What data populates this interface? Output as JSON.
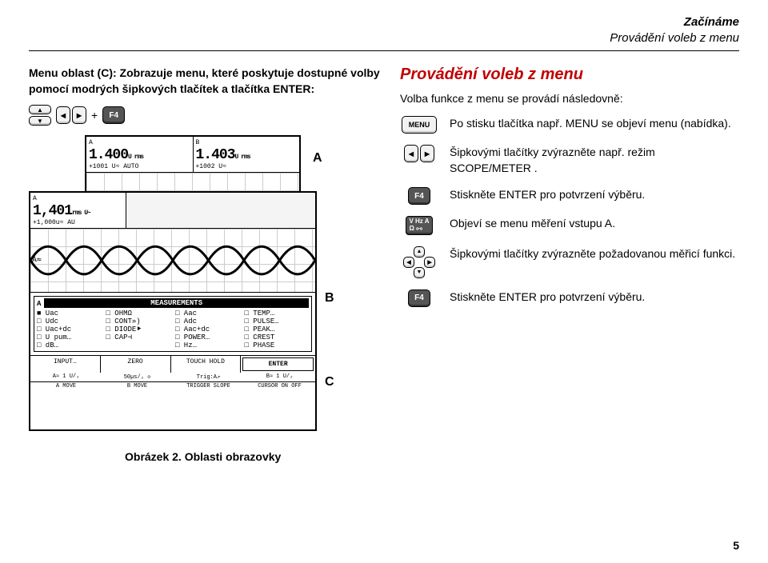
{
  "header": {
    "line1": "Začínáme",
    "line2": "Provádění voleb z menu"
  },
  "left": {
    "intro": "Menu oblast (C): Zobrazuje menu, které poskytuje dostupné volby pomocí modrých šipkových tlačítek a tlačítka ENTER:",
    "plus": "+",
    "f4": "F4",
    "abc": {
      "a": "A",
      "b": "B",
      "c": "C"
    }
  },
  "scope_back": {
    "readA": "1.400",
    "unitA": "U rms",
    "subA": "+1001  U≈   AUTO",
    "readB": "1.403",
    "unitB": "U rms",
    "subB": "+1002  U≈"
  },
  "scope_front": {
    "readA": "1,401",
    "unitA": "rms U~",
    "subA": "+1,000u≈   AU",
    "meas_title": "MEASUREMENTS",
    "meas_hdr": "A",
    "cols": [
      [
        "■ Uac",
        "□ Udc",
        "□ Uac+dc",
        "□ U pum…",
        "□ dB…"
      ],
      [
        "□ OHMΩ",
        "□ CONT»)",
        "□ DIODE⯈",
        "□ CAP⊣",
        "    "
      ],
      [
        "□ Aac",
        "□ Adc",
        "□ Aac+dc",
        "□ POWER…",
        "□ Hz…"
      ],
      [
        "□ TEMP…",
        "□ PULSE…",
        "□ PEAK…",
        "□ CREST",
        "□ PHASE"
      ]
    ],
    "softkeys": [
      "INPUT…",
      "ZERO",
      "TOUCH HOLD",
      "ENTER"
    ],
    "bottom1": [
      "A≈  1 U/₂",
      "50µs/₂ ◇",
      "Trig:A↗",
      "B≈   1 U/₂"
    ],
    "bottom2": [
      "A MOVE",
      "B MOVE",
      "TRIGGER SLOPE",
      "CURSOR ON  OFF"
    ]
  },
  "right": {
    "title": "Provádění voleb z menu",
    "intro": "Volba funkce z menu se provádí následovně:",
    "steps": [
      {
        "icon": "menu",
        "label": "MENU",
        "text": "Po stisku tlačítka např. MENU se objeví menu (nabídka)."
      },
      {
        "icon": "lr",
        "label": "",
        "text": "Šipkovými tlačítky zvýrazněte např. režim SCOPE/METER ."
      },
      {
        "icon": "f4",
        "label": "F4",
        "text": "Stiskněte ENTER pro potvrzení výběru."
      },
      {
        "icon": "vhza",
        "label": "",
        "text": "Objeví se menu měření vstupu A."
      },
      {
        "icon": "dpad",
        "label": "",
        "text": "Šipkovými tlačítky zvýrazněte požadovanou měřicí funkci."
      },
      {
        "icon": "f4",
        "label": "F4",
        "text": "Stiskněte ENTER pro potvrzení výběru."
      }
    ],
    "vhza_l1": "V Hz A",
    "vhza_l2": "Ω  ⧟"
  },
  "caption": "Obrázek 2. Oblasti obrazovky",
  "pagenum": "5",
  "colors": {
    "accent": "#c00000"
  }
}
